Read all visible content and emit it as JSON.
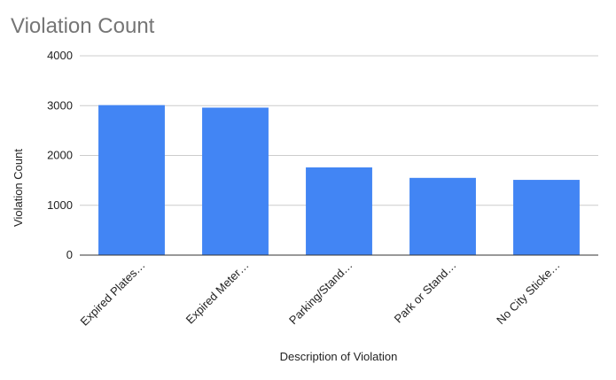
{
  "chart_data": {
    "type": "bar",
    "title": "Violation Count",
    "xlabel": "Description of Violation",
    "ylabel": "Violation Count",
    "categories": [
      "Expired Plates…",
      "Expired Meter…",
      "Parking/Stand…",
      "Park or Stand…",
      "No City Sticke…"
    ],
    "series": [
      {
        "values": [
          3010,
          2960,
          1760,
          1550,
          1510
        ]
      }
    ],
    "ylim": [
      0,
      4000
    ],
    "yticks": [
      "0",
      "1000",
      "2000",
      "3000",
      "4000"
    ],
    "grid": true,
    "legend": "none",
    "bar_color": "#4285f4"
  }
}
